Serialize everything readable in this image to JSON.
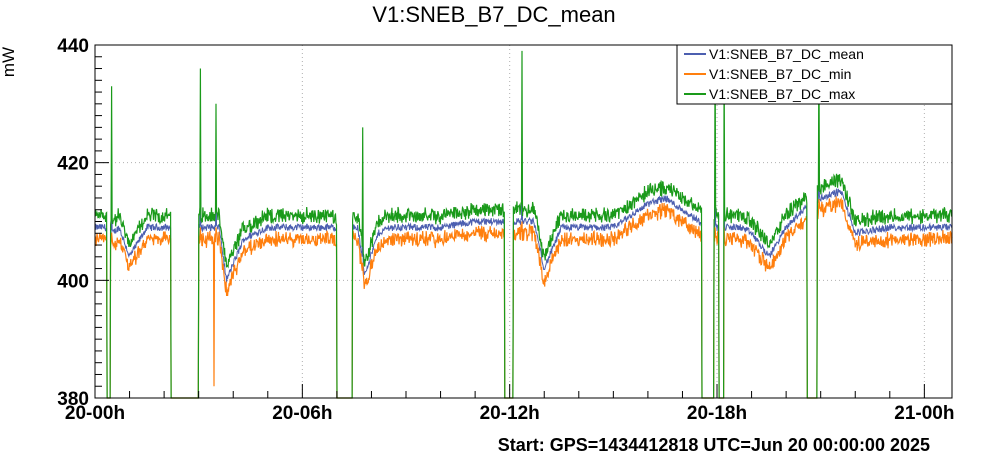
{
  "chart_data": {
    "type": "line",
    "title": "V1:SNEB_B7_DC_mean",
    "ylabel": "mW",
    "ylim": [
      380,
      440
    ],
    "yticks": [
      "380",
      "400",
      "420",
      "440"
    ],
    "xlim": [
      0,
      24.8
    ],
    "xticks": [
      {
        "x": 0,
        "label": "20-00h"
      },
      {
        "x": 6,
        "label": "20-06h"
      },
      {
        "x": 12,
        "label": "20-12h"
      },
      {
        "x": 18,
        "label": "20-18h"
      },
      {
        "x": 24,
        "label": "21-00h"
      }
    ],
    "grid": true,
    "legend_position": "top-right",
    "start_label": "Start: GPS=1434412818 UTC=Jun 20 00:00:00 2025",
    "series": [
      {
        "name": "V1:SNEB_B7_DC_mean",
        "color": "#4c5fb0"
      },
      {
        "name": "V1:SNEB_B7_DC_min",
        "color": "#ff7f0e"
      },
      {
        "name": "V1:SNEB_B7_DC_max",
        "color": "#1a9a1a"
      }
    ],
    "baseline": {
      "x": [
        0,
        0.3,
        0.5,
        0.7,
        1.0,
        1.5,
        2.0,
        2.2,
        2.9,
        3.2,
        3.5,
        3.6,
        3.8,
        4.3,
        5.0,
        6.0,
        7.0,
        7.3,
        7.6,
        7.8,
        8.2,
        8.5,
        9.0,
        10.0,
        11.0,
        12.0,
        12.4,
        12.7,
        13.0,
        13.5,
        14.0,
        14.5,
        15.0,
        15.5,
        16.0,
        16.5,
        17.0,
        17.5,
        17.9,
        18.4,
        18.7,
        19.0,
        19.5,
        20.0,
        20.5,
        21.0,
        21.5,
        21.6,
        22.0,
        23.0,
        24.0,
        24.8
      ],
      "y": [
        409,
        409,
        408,
        409,
        404,
        409,
        409,
        409,
        409,
        409,
        409,
        409,
        400,
        407,
        409,
        409,
        409,
        409,
        409,
        401,
        408,
        409,
        409,
        409,
        410,
        410,
        410,
        410,
        402,
        409,
        409,
        409,
        409,
        411,
        413,
        414,
        412,
        410,
        409,
        409,
        409,
        408,
        404,
        409,
        412,
        414,
        415,
        415,
        408,
        409,
        409,
        409
      ]
    },
    "noise_band": 2,
    "dropouts": [
      {
        "from": 0.35,
        "to": 0.45,
        "y": 380
      },
      {
        "from": 2.2,
        "to": 3.0,
        "y": 380
      },
      {
        "from": 7.0,
        "to": 7.45,
        "y": 380
      },
      {
        "from": 11.85,
        "to": 12.1,
        "y": 380
      },
      {
        "from": 17.55,
        "to": 17.9,
        "y": 380
      },
      {
        "from": 18.05,
        "to": 18.2,
        "y": 380
      },
      {
        "from": 20.6,
        "to": 20.9,
        "y": 380
      }
    ],
    "spikes": [
      {
        "x": 0.48,
        "y": 433
      },
      {
        "x": 3.05,
        "y": 436
      },
      {
        "x": 3.5,
        "y": 430
      },
      {
        "x": 7.75,
        "y": 426
      },
      {
        "x": 12.35,
        "y": 439
      },
      {
        "x": 17.95,
        "y": 440
      },
      {
        "x": 18.2,
        "y": 440
      },
      {
        "x": 20.95,
        "y": 440
      }
    ],
    "min_dips": [
      {
        "x": 3.45,
        "y": 382
      }
    ]
  }
}
